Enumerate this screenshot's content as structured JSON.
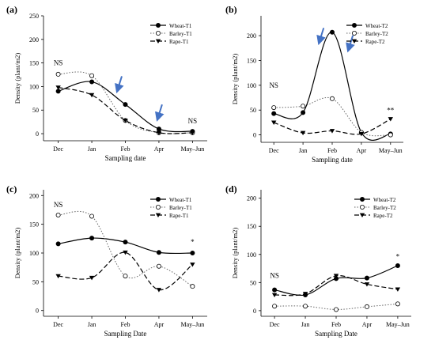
{
  "figure": {
    "categories_lower": [
      "Dec",
      "Jan",
      "Feb",
      "Apr",
      "May–Jun"
    ]
  },
  "chart_data": [
    {
      "panel_label": "(a)",
      "type": "line",
      "categories": [
        "Dec",
        "Jan",
        "Feb",
        "Apr",
        "May–Jun"
      ],
      "xlabel": "Sampling date",
      "ylabel": "Density (plant/m2)",
      "ylim": [
        -15,
        250
      ],
      "yticks": [
        0,
        50,
        100,
        150,
        200,
        250
      ],
      "legend_position": "top-right",
      "annotations": [
        {
          "text": "NS",
          "category": "Dec",
          "value": 145
        },
        {
          "text": "NS",
          "category": "May–Jun",
          "value": 22
        }
      ],
      "arrows": [
        {
          "category_pos": 1.8,
          "value": 95
        },
        {
          "category_pos": 3.0,
          "value": 35
        }
      ],
      "series": [
        {
          "name": "Wheat-T1",
          "marker": "filled-circle",
          "line": "solid",
          "values": [
            90,
            110,
            62,
            10,
            5
          ]
        },
        {
          "name": "Barley-T1",
          "marker": "open-circle",
          "line": "dotted",
          "values": [
            126,
            123,
            28,
            2,
            2
          ]
        },
        {
          "name": "Rape-T1",
          "marker": "down-triangle",
          "line": "dashed",
          "values": [
            98,
            82,
            28,
            2,
            2
          ]
        }
      ]
    },
    {
      "panel_label": "(b)",
      "type": "line",
      "categories": [
        "Dec",
        "Jan",
        "Feb",
        "Apr",
        "May–Jun"
      ],
      "xlabel": "Sampling date",
      "ylabel": "Density (plant/m2)",
      "ylim": [
        -15,
        240
      ],
      "yticks": [
        0,
        50,
        100,
        150,
        200
      ],
      "legend_position": "top-right",
      "annotations": [
        {
          "text": "NS",
          "category": "Dec",
          "value": 95
        },
        {
          "text": "**",
          "category": "May–Jun",
          "value": 45
        }
      ],
      "arrows": [
        {
          "category_pos": 1.6,
          "value": 190
        },
        {
          "category_pos": 2.6,
          "value": 175
        }
      ],
      "series": [
        {
          "name": "Wheat-T2",
          "marker": "filled-circle",
          "line": "solid",
          "values": [
            43,
            45,
            207,
            5,
            2
          ]
        },
        {
          "name": "Barley-T2",
          "marker": "open-circle",
          "line": "dotted",
          "values": [
            55,
            58,
            73,
            5,
            0
          ]
        },
        {
          "name": "Rape-T2",
          "marker": "down-triangle",
          "line": "dashed",
          "values": [
            25,
            4,
            8,
            2,
            32
          ]
        }
      ]
    },
    {
      "panel_label": "(c)",
      "type": "line",
      "categories": [
        "Dec",
        "Jan",
        "Feb",
        "Apr",
        "May–Jun"
      ],
      "xlabel": "Sampling Date",
      "ylabel": "Density (plant/m2)",
      "ylim": [
        -10,
        210
      ],
      "yticks": [
        0,
        50,
        100,
        150,
        200
      ],
      "legend_position": "top-right",
      "annotations": [
        {
          "text": "NS",
          "category": "Dec",
          "value": 180
        },
        {
          "text": "*",
          "category": "May–Jun",
          "value": 115
        }
      ],
      "series": [
        {
          "name": "Wheat-T1",
          "marker": "filled-circle",
          "line": "solid",
          "values": [
            116,
            126,
            119,
            101,
            100
          ]
        },
        {
          "name": "Barley-T1",
          "marker": "open-circle",
          "line": "dotted",
          "values": [
            166,
            164,
            60,
            77,
            42
          ]
        },
        {
          "name": "Rape-T1",
          "marker": "down-triangle",
          "line": "dashed",
          "values": [
            60,
            57,
            101,
            36,
            80
          ]
        }
      ]
    },
    {
      "panel_label": "(d)",
      "type": "line",
      "categories": [
        "Dec",
        "Jan",
        "Feb",
        "Apr",
        "May–Jun"
      ],
      "xlabel": "Sampling Date",
      "ylabel": "Density (plant/m2)",
      "ylim": [
        -10,
        215
      ],
      "yticks": [
        0,
        50,
        100,
        150,
        200
      ],
      "legend_position": "top-right",
      "annotations": [
        {
          "text": "NS",
          "category": "Dec",
          "value": 58
        },
        {
          "text": "*",
          "category": "May–Jun",
          "value": 92
        }
      ],
      "series": [
        {
          "name": "Wheat-T2",
          "marker": "filled-circle",
          "line": "solid",
          "values": [
            37,
            28,
            57,
            58,
            80
          ]
        },
        {
          "name": "Barley-T2",
          "marker": "open-circle",
          "line": "dotted",
          "values": [
            8,
            8,
            2,
            7,
            12
          ]
        },
        {
          "name": "Rape-T2",
          "marker": "down-triangle",
          "line": "dashed",
          "values": [
            28,
            30,
            62,
            47,
            38
          ]
        }
      ]
    }
  ]
}
